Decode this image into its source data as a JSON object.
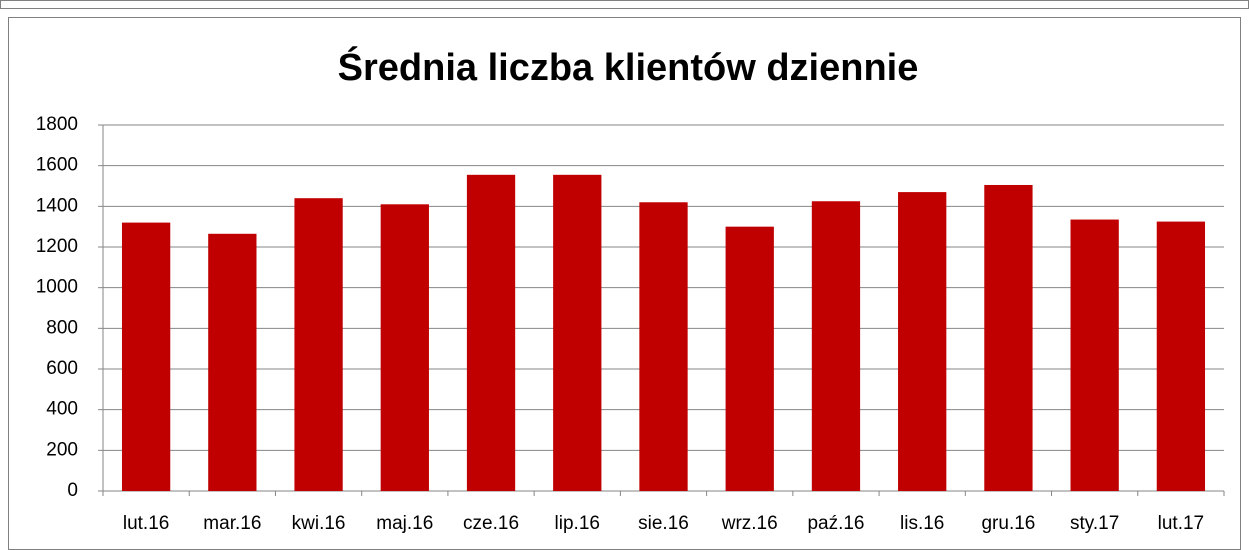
{
  "chart_data": {
    "type": "bar",
    "title": "Średnia liczba klientów dziennie",
    "categories": [
      "lut.16",
      "mar.16",
      "kwi.16",
      "maj.16",
      "cze.16",
      "lip.16",
      "sie.16",
      "wrz.16",
      "paź.16",
      "lis.16",
      "gru.16",
      "sty.17",
      "lut.17"
    ],
    "values": [
      1320,
      1265,
      1440,
      1410,
      1555,
      1555,
      1420,
      1300,
      1425,
      1470,
      1505,
      1335,
      1325
    ],
    "color": "#c00000",
    "ylim": [
      0,
      1800
    ],
    "yticks": [
      0,
      200,
      400,
      600,
      800,
      1000,
      1200,
      1400,
      1600,
      1800
    ],
    "grid": true
  }
}
